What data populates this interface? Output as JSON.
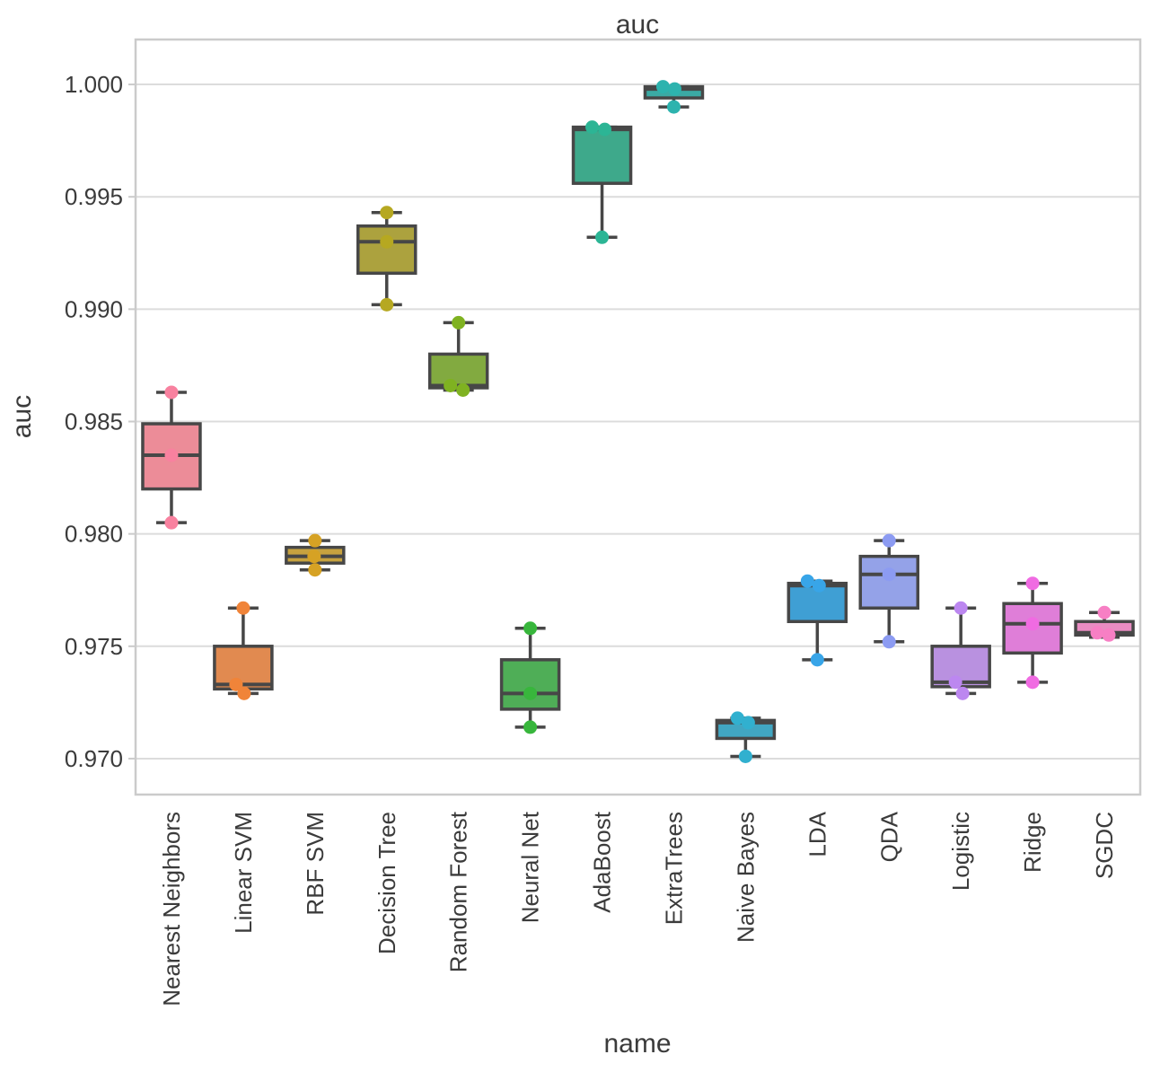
{
  "page": {
    "title": "auc"
  },
  "style": {
    "background": "#ffffff",
    "text_color": "#3b3b3b",
    "grid_color": "#dcdcdc",
    "border_color": "#cbcbcb",
    "box_edge_color": "#474747"
  },
  "chart_data": {
    "type": "box",
    "title": "auc",
    "xlabel": "name",
    "ylabel": "auc",
    "grid": "horizontal",
    "legend": "none",
    "ylim": [
      0.9684,
      1.002
    ],
    "yticks": [
      1.0,
      0.995,
      0.99,
      0.985,
      0.98,
      0.975,
      0.97
    ],
    "ytick_labels": [
      "1.000",
      "0.995",
      "0.990",
      "0.985",
      "0.980",
      "0.975",
      "0.970"
    ],
    "boxes": [
      {
        "name": "Nearest Neighbors",
        "box_color": "#ec8c98",
        "point_color": "#f8819f",
        "whislo": 0.9805,
        "q1": 0.982,
        "med": 0.9835,
        "q3": 0.9849,
        "whishi": 0.9863,
        "points": [
          {
            "v": 0.9863,
            "dx": 0
          },
          {
            "v": 0.9835,
            "dx": 0
          },
          {
            "v": 0.9805,
            "dx": 0
          }
        ]
      },
      {
        "name": "Linear SVM",
        "box_color": "#e18a50",
        "point_color": "#f08439",
        "whislo": 0.9729,
        "q1": 0.9731,
        "med": 0.9733,
        "q3": 0.975,
        "whishi": 0.9767,
        "points": [
          {
            "v": 0.9767,
            "dx": 0
          },
          {
            "v": 0.9733,
            "dx": -8
          },
          {
            "v": 0.9729,
            "dx": 1
          }
        ]
      },
      {
        "name": "RBF SVM",
        "box_color": "#c7a23f",
        "point_color": "#d6a224",
        "whislo": 0.9784,
        "q1": 0.9787,
        "med": 0.979,
        "q3": 0.9794,
        "whishi": 0.9797,
        "points": [
          {
            "v": 0.9797,
            "dx": 0
          },
          {
            "v": 0.979,
            "dx": -1
          },
          {
            "v": 0.9784,
            "dx": 0
          }
        ]
      },
      {
        "name": "Decision Tree",
        "box_color": "#aca23e",
        "point_color": "#b6a821",
        "whislo": 0.9902,
        "q1": 0.9916,
        "med": 0.993,
        "q3": 0.9937,
        "whishi": 0.9943,
        "points": [
          {
            "v": 0.9943,
            "dx": 0
          },
          {
            "v": 0.993,
            "dx": 0
          },
          {
            "v": 0.9902,
            "dx": 0
          }
        ]
      },
      {
        "name": "Random Forest",
        "box_color": "#82aa40",
        "point_color": "#7fb221",
        "whislo": 0.9864,
        "q1": 0.9865,
        "med": 0.9866,
        "q3": 0.988,
        "whishi": 0.9894,
        "points": [
          {
            "v": 0.9894,
            "dx": 0
          },
          {
            "v": 0.9866,
            "dx": -9
          },
          {
            "v": 0.9864,
            "dx": 5
          }
        ]
      },
      {
        "name": "Neural Net",
        "box_color": "#4fae57",
        "point_color": "#38b63c",
        "whislo": 0.9714,
        "q1": 0.9722,
        "med": 0.9729,
        "q3": 0.9744,
        "whishi": 0.9758,
        "points": [
          {
            "v": 0.9758,
            "dx": 0
          },
          {
            "v": 0.9729,
            "dx": 0
          },
          {
            "v": 0.9714,
            "dx": 0
          }
        ]
      },
      {
        "name": "AdaBoost",
        "box_color": "#3ea98b",
        "point_color": "#2cb595",
        "whislo": 0.9932,
        "q1": 0.9956,
        "med": 0.998,
        "q3": 0.9981,
        "whishi": 0.9981,
        "points": [
          {
            "v": 0.9981,
            "dx": -11
          },
          {
            "v": 0.998,
            "dx": 3
          },
          {
            "v": 0.9932,
            "dx": 0
          }
        ]
      },
      {
        "name": "ExtraTrees",
        "box_color": "#3baaa4",
        "point_color": "#2db3ae",
        "whislo": 0.999,
        "q1": 0.9994,
        "med": 0.9998,
        "q3": 0.9999,
        "whishi": 0.9999,
        "points": [
          {
            "v": 0.9999,
            "dx": -12
          },
          {
            "v": 0.9998,
            "dx": 1
          },
          {
            "v": 0.999,
            "dx": 0
          }
        ]
      },
      {
        "name": "Naive Bayes",
        "box_color": "#41a6c2",
        "point_color": "#31b0cf",
        "whislo": 0.9701,
        "q1": 0.9709,
        "med": 0.9716,
        "q3": 0.9717,
        "whishi": 0.9718,
        "points": [
          {
            "v": 0.9718,
            "dx": -9
          },
          {
            "v": 0.9716,
            "dx": 3
          },
          {
            "v": 0.9701,
            "dx": 0
          }
        ]
      },
      {
        "name": "LDA",
        "box_color": "#3f9fd4",
        "point_color": "#38a5e8",
        "whislo": 0.9744,
        "q1": 0.9761,
        "med": 0.9777,
        "q3": 0.9778,
        "whishi": 0.9779,
        "points": [
          {
            "v": 0.9779,
            "dx": -11
          },
          {
            "v": 0.9777,
            "dx": 2
          },
          {
            "v": 0.9744,
            "dx": 0
          }
        ]
      },
      {
        "name": "QDA",
        "box_color": "#94a2e8",
        "point_color": "#8c9bf2",
        "whislo": 0.9752,
        "q1": 0.9767,
        "med": 0.9782,
        "q3": 0.979,
        "whishi": 0.9797,
        "points": [
          {
            "v": 0.9797,
            "dx": 0
          },
          {
            "v": 0.9782,
            "dx": 0
          },
          {
            "v": 0.9752,
            "dx": 0
          }
        ]
      },
      {
        "name": "Logistic",
        "box_color": "#b991e0",
        "point_color": "#bc87f0",
        "whislo": 0.9729,
        "q1": 0.9732,
        "med": 0.9734,
        "q3": 0.975,
        "whishi": 0.9767,
        "points": [
          {
            "v": 0.9767,
            "dx": 0
          },
          {
            "v": 0.9734,
            "dx": -6
          },
          {
            "v": 0.9729,
            "dx": 2
          }
        ]
      },
      {
        "name": "Ridge",
        "box_color": "#df7ed8",
        "point_color": "#f06be2",
        "whislo": 0.9734,
        "q1": 0.9747,
        "med": 0.976,
        "q3": 0.9769,
        "whishi": 0.9778,
        "points": [
          {
            "v": 0.9778,
            "dx": 0
          },
          {
            "v": 0.976,
            "dx": 0
          },
          {
            "v": 0.9734,
            "dx": 0
          }
        ]
      },
      {
        "name": "SGDC",
        "box_color": "#e98cc2",
        "point_color": "#f77fc4",
        "whislo": 0.9754,
        "q1": 0.9755,
        "med": 0.9756,
        "q3": 0.9761,
        "whishi": 0.9765,
        "points": [
          {
            "v": 0.9765,
            "dx": 0
          },
          {
            "v": 0.9756,
            "dx": -8
          },
          {
            "v": 0.9755,
            "dx": 5
          }
        ]
      }
    ]
  }
}
